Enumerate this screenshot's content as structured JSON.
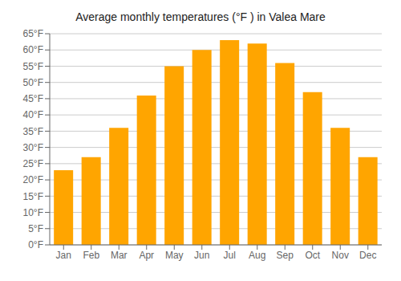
{
  "chart_data": {
    "type": "bar",
    "title": "Average monthly temperatures (°F ) in Valea Mare",
    "categories": [
      "Jan",
      "Feb",
      "Mar",
      "Apr",
      "May",
      "Jun",
      "Jul",
      "Aug",
      "Sep",
      "Oct",
      "Nov",
      "Dec"
    ],
    "values": [
      23,
      27,
      36,
      46,
      55,
      60,
      63,
      62,
      56,
      47,
      36,
      27
    ],
    "color": "#FFA500",
    "ylim": [
      0,
      65
    ],
    "yticks": [
      {
        "value": 0,
        "label": "0°F"
      },
      {
        "value": 5,
        "label": "5°F"
      },
      {
        "value": 10,
        "label": "10°F"
      },
      {
        "value": 15,
        "label": "15°F"
      },
      {
        "value": 20,
        "label": "20°F"
      },
      {
        "value": 25,
        "label": "25°F"
      },
      {
        "value": 30,
        "label": "30°F"
      },
      {
        "value": 35,
        "label": "35°F"
      },
      {
        "value": 40,
        "label": "40°F"
      },
      {
        "value": 45,
        "label": "45°F"
      },
      {
        "value": 50,
        "label": "50°F"
      },
      {
        "value": 55,
        "label": "55°F"
      },
      {
        "value": 60,
        "label": "60°F"
      },
      {
        "value": 65,
        "label": "65°F"
      }
    ],
    "grid": true
  }
}
